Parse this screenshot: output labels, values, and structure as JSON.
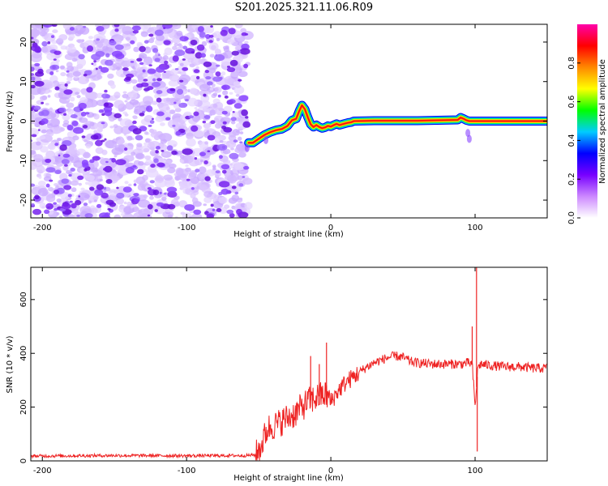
{
  "title": "S201.2025.321.11.06.R09",
  "chart_data": [
    {
      "type": "heatmap",
      "name": "spectrogram",
      "xlabel": "Height of straight line (km)",
      "ylabel": "Frequency (Hz)",
      "xlim": [
        -208,
        150
      ],
      "ylim": [
        -24.5,
        24.5
      ],
      "xticks": [
        -200,
        -100,
        0,
        100
      ],
      "xtick_labels": [
        "-200",
        "-100",
        "0",
        "100"
      ],
      "yticks": [
        -20,
        -10,
        0,
        10,
        20
      ],
      "ytick_labels": [
        "-20",
        "-10",
        "0",
        "10",
        "20"
      ],
      "noise_region_x": [
        -208,
        -57
      ],
      "ridge": {
        "x": [
          -57,
          -54,
          -50,
          -46,
          -42,
          -38,
          -34,
          -30,
          -27,
          -24,
          -22,
          -20,
          -18,
          -16,
          -14,
          -12,
          -10,
          -8,
          -6,
          -4,
          -2,
          0,
          2,
          4,
          6,
          8,
          10,
          12,
          14,
          16,
          30,
          60,
          88,
          90,
          92,
          94,
          96,
          110,
          150
        ],
        "y": [
          -5.5,
          -5.5,
          -4.5,
          -3.5,
          -2.8,
          -2.3,
          -2.0,
          -1.2,
          0.2,
          0.6,
          2.5,
          4.0,
          3.0,
          1.0,
          -0.8,
          -1.5,
          -1.0,
          -1.5,
          -1.8,
          -1.6,
          -1.2,
          -1.4,
          -1.0,
          -0.7,
          -1.0,
          -0.8,
          -0.6,
          -0.4,
          -0.3,
          0.0,
          0.1,
          0.1,
          0.3,
          0.9,
          0.6,
          0.2,
          0.0,
          0.0,
          0.0
        ]
      },
      "colorbar": {
        "label": "Normalized spectral amplitude",
        "range": [
          0,
          1
        ],
        "ticks": [
          0.0,
          0.2,
          0.4,
          0.6,
          0.8
        ],
        "tick_labels": [
          "0.0",
          "0.2",
          "0.4",
          "0.6",
          "0.8"
        ],
        "colors": [
          "#ffffff",
          "#cc88ff",
          "#7700ff",
          "#0000ff",
          "#00ccff",
          "#00ff00",
          "#ffff00",
          "#ff8800",
          "#ff0000",
          "#ff00aa"
        ]
      }
    },
    {
      "type": "line",
      "name": "snr",
      "xlabel": "Height of straight line (km)",
      "ylabel": "SNR (10 * v/v)",
      "xlim": [
        -208,
        150
      ],
      "ylim": [
        0,
        720
      ],
      "xticks": [
        -200,
        -100,
        0,
        100
      ],
      "xtick_labels": [
        "-200",
        "-100",
        "0",
        "100"
      ],
      "yticks": [
        0,
        200,
        400,
        600
      ],
      "ytick_labels": [
        "0",
        "200",
        "400",
        "600"
      ],
      "color": "#ee2222",
      "series": [
        {
          "name": "SNR",
          "x": [
            -208,
            -150,
            -100,
            -60,
            -52,
            -48,
            -44,
            -40,
            -36,
            -32,
            -28,
            -24,
            -20,
            -16,
            -12,
            -8,
            -4,
            -2,
            0,
            5,
            10,
            15,
            20,
            25,
            30,
            35,
            40,
            45,
            50,
            55,
            60,
            70,
            80,
            90,
            95,
            98,
            100,
            102,
            104,
            110,
            120,
            130,
            140,
            150
          ],
          "y": [
            18,
            20,
            19,
            20,
            22,
            60,
            120,
            130,
            140,
            155,
            165,
            180,
            200,
            220,
            230,
            240,
            245,
            240,
            220,
            260,
            290,
            310,
            330,
            350,
            365,
            375,
            385,
            390,
            385,
            370,
            365,
            360,
            360,
            360,
            365,
            360,
            200,
            350,
            360,
            355,
            350,
            350,
            345,
            345
          ]
        }
      ],
      "spikes": [
        {
          "x": -14,
          "y": 390
        },
        {
          "x": -8,
          "y": 360
        },
        {
          "x": -3,
          "y": 440
        },
        {
          "x": 98,
          "y": 500
        },
        {
          "x": 101,
          "y": 720
        },
        {
          "x": 101.5,
          "y": 35
        }
      ]
    }
  ]
}
